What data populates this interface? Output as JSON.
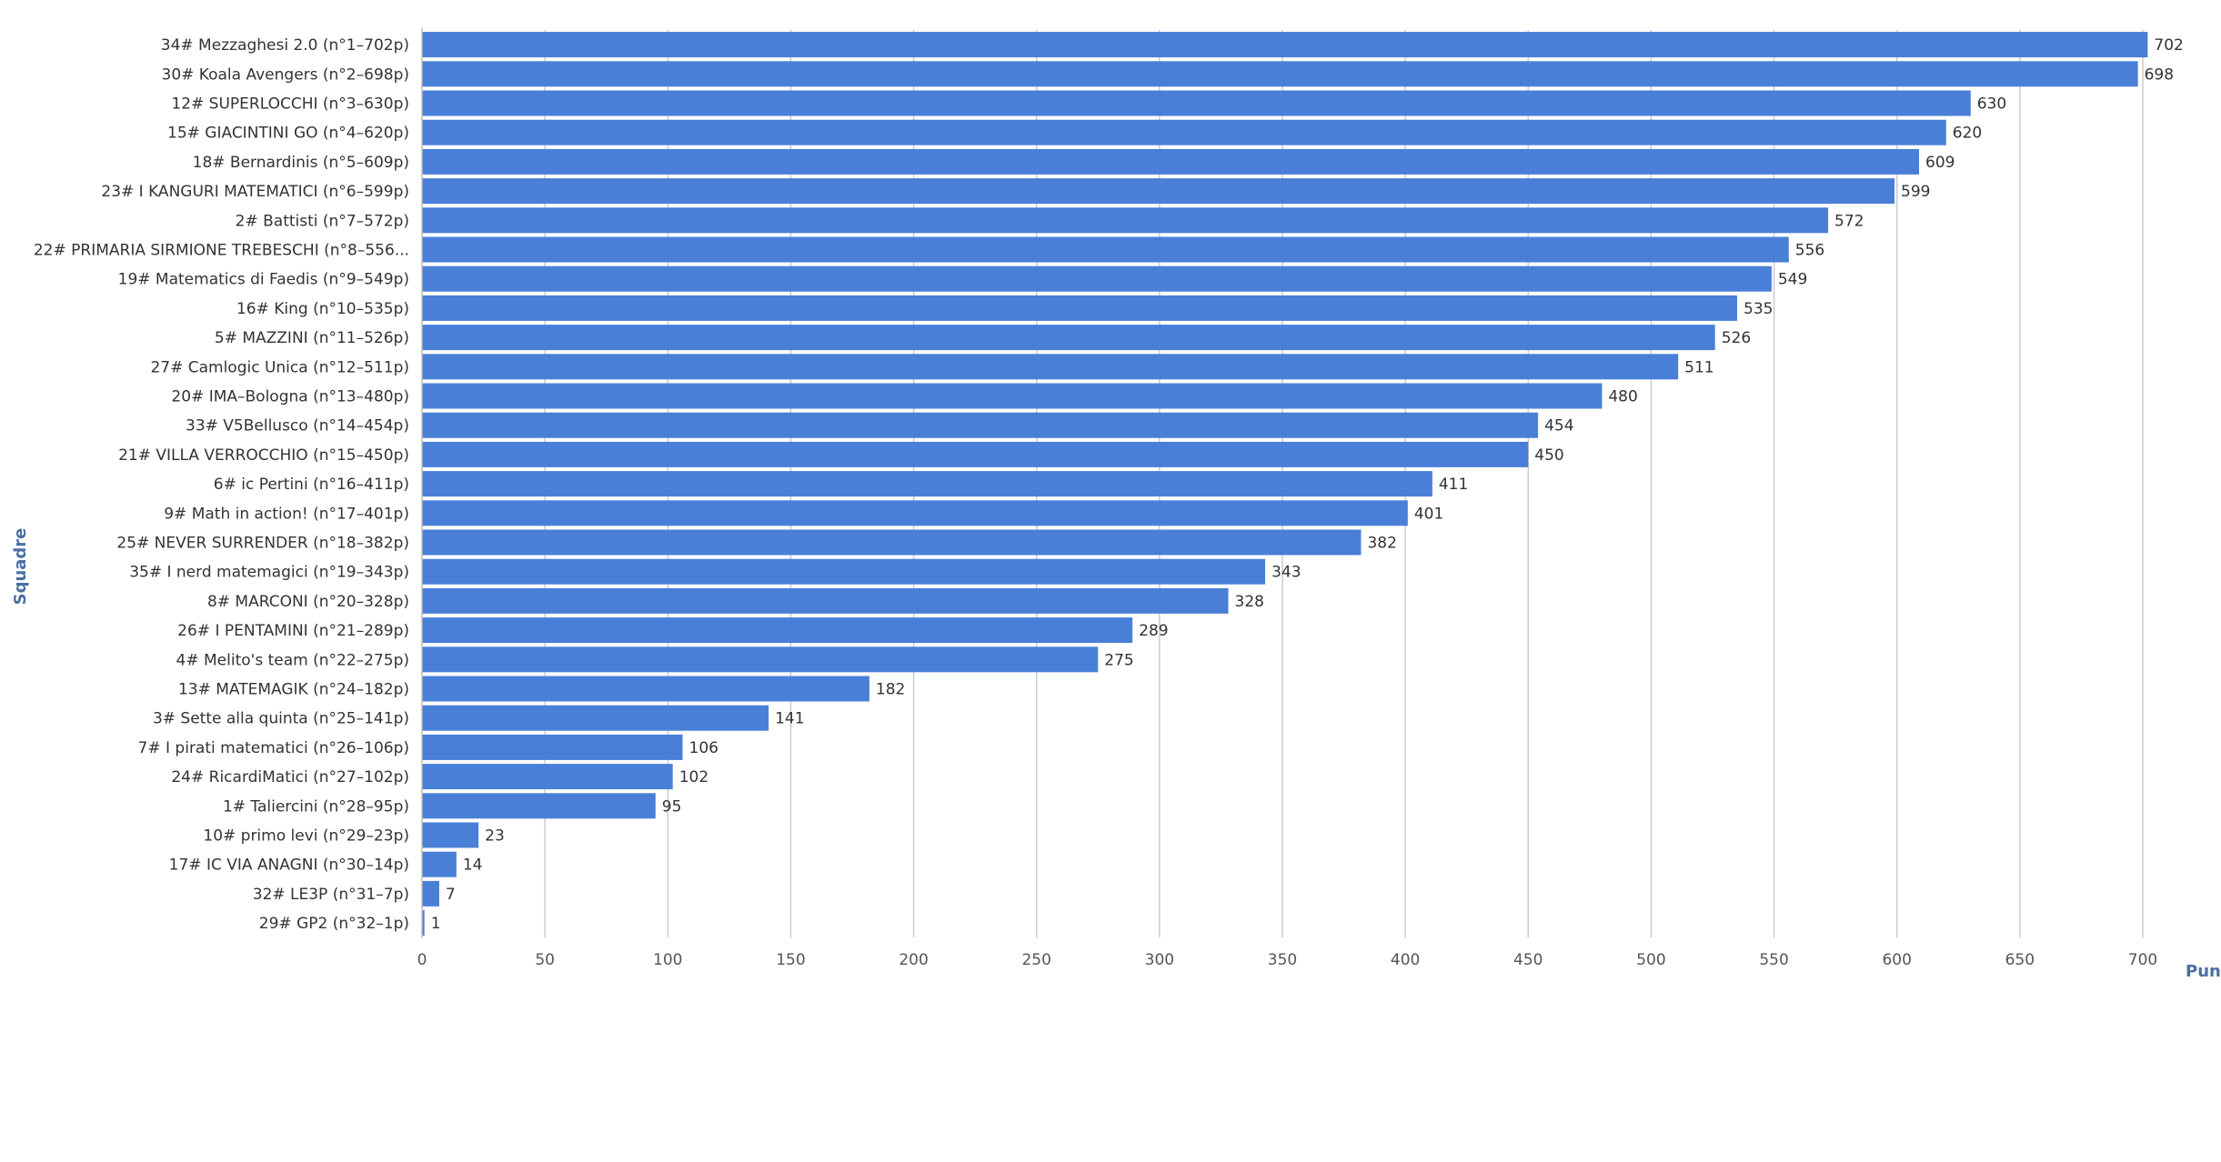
{
  "chart_data": {
    "type": "bar",
    "orientation": "horizontal",
    "title": "",
    "ylabel": "Squadre",
    "xlabel": "Punt",
    "xlim": [
      0,
      700
    ],
    "x_ticks": [
      0,
      50,
      100,
      150,
      200,
      250,
      300,
      350,
      400,
      450,
      500,
      550,
      600,
      650,
      700
    ],
    "grid": "vertical",
    "bar_color": "#4a7fd8",
    "categories": [
      "34# Mezzaghesi 2.0 (n°1–702p)",
      "30# Koala Avengers (n°2–698p)",
      "12# SUPERLOCCHI (n°3–630p)",
      "15# GIACINTINI GO (n°4–620p)",
      "18# Bernardinis (n°5–609p)",
      "23# I KANGURI MATEMATICI (n°6–599p)",
      "2# Battisti (n°7–572p)",
      "22# PRIMARIA SIRMIONE TREBESCHI (n°8–556...",
      "19# Matematics di Faedis (n°9–549p)",
      "16# King (n°10–535p)",
      "5# MAZZINI (n°11–526p)",
      "27# Camlogic Unica (n°12–511p)",
      "20# IMA–Bologna (n°13–480p)",
      "33# V5Bellusco (n°14–454p)",
      "21# VILLA VERROCCHIO (n°15–450p)",
      "6# ic Pertini (n°16–411p)",
      "9# Math in action! (n°17–401p)",
      "25# NEVER SURRENDER (n°18–382p)",
      "35# I nerd matemagici (n°19–343p)",
      "8# MARCONI (n°20–328p)",
      "26# I PENTAMINI (n°21–289p)",
      "4# Melito's team (n°22–275p)",
      "13# MATEMAGIK (n°24–182p)",
      "3# Sette alla quinta (n°25–141p)",
      "7# I pirati matematici (n°26–106p)",
      "24# RicardiMatici (n°27–102p)",
      "1# Taliercini (n°28–95p)",
      "10# primo levi (n°29–23p)",
      "17# IC VIA ANAGNI (n°30–14p)",
      "32# LE3P (n°31–7p)",
      "29# GP2 (n°32–1p)"
    ],
    "values": [
      702,
      698,
      630,
      620,
      609,
      599,
      572,
      556,
      549,
      535,
      526,
      511,
      480,
      454,
      450,
      411,
      401,
      382,
      343,
      328,
      289,
      275,
      182,
      141,
      106,
      102,
      95,
      23,
      14,
      7,
      1
    ]
  }
}
